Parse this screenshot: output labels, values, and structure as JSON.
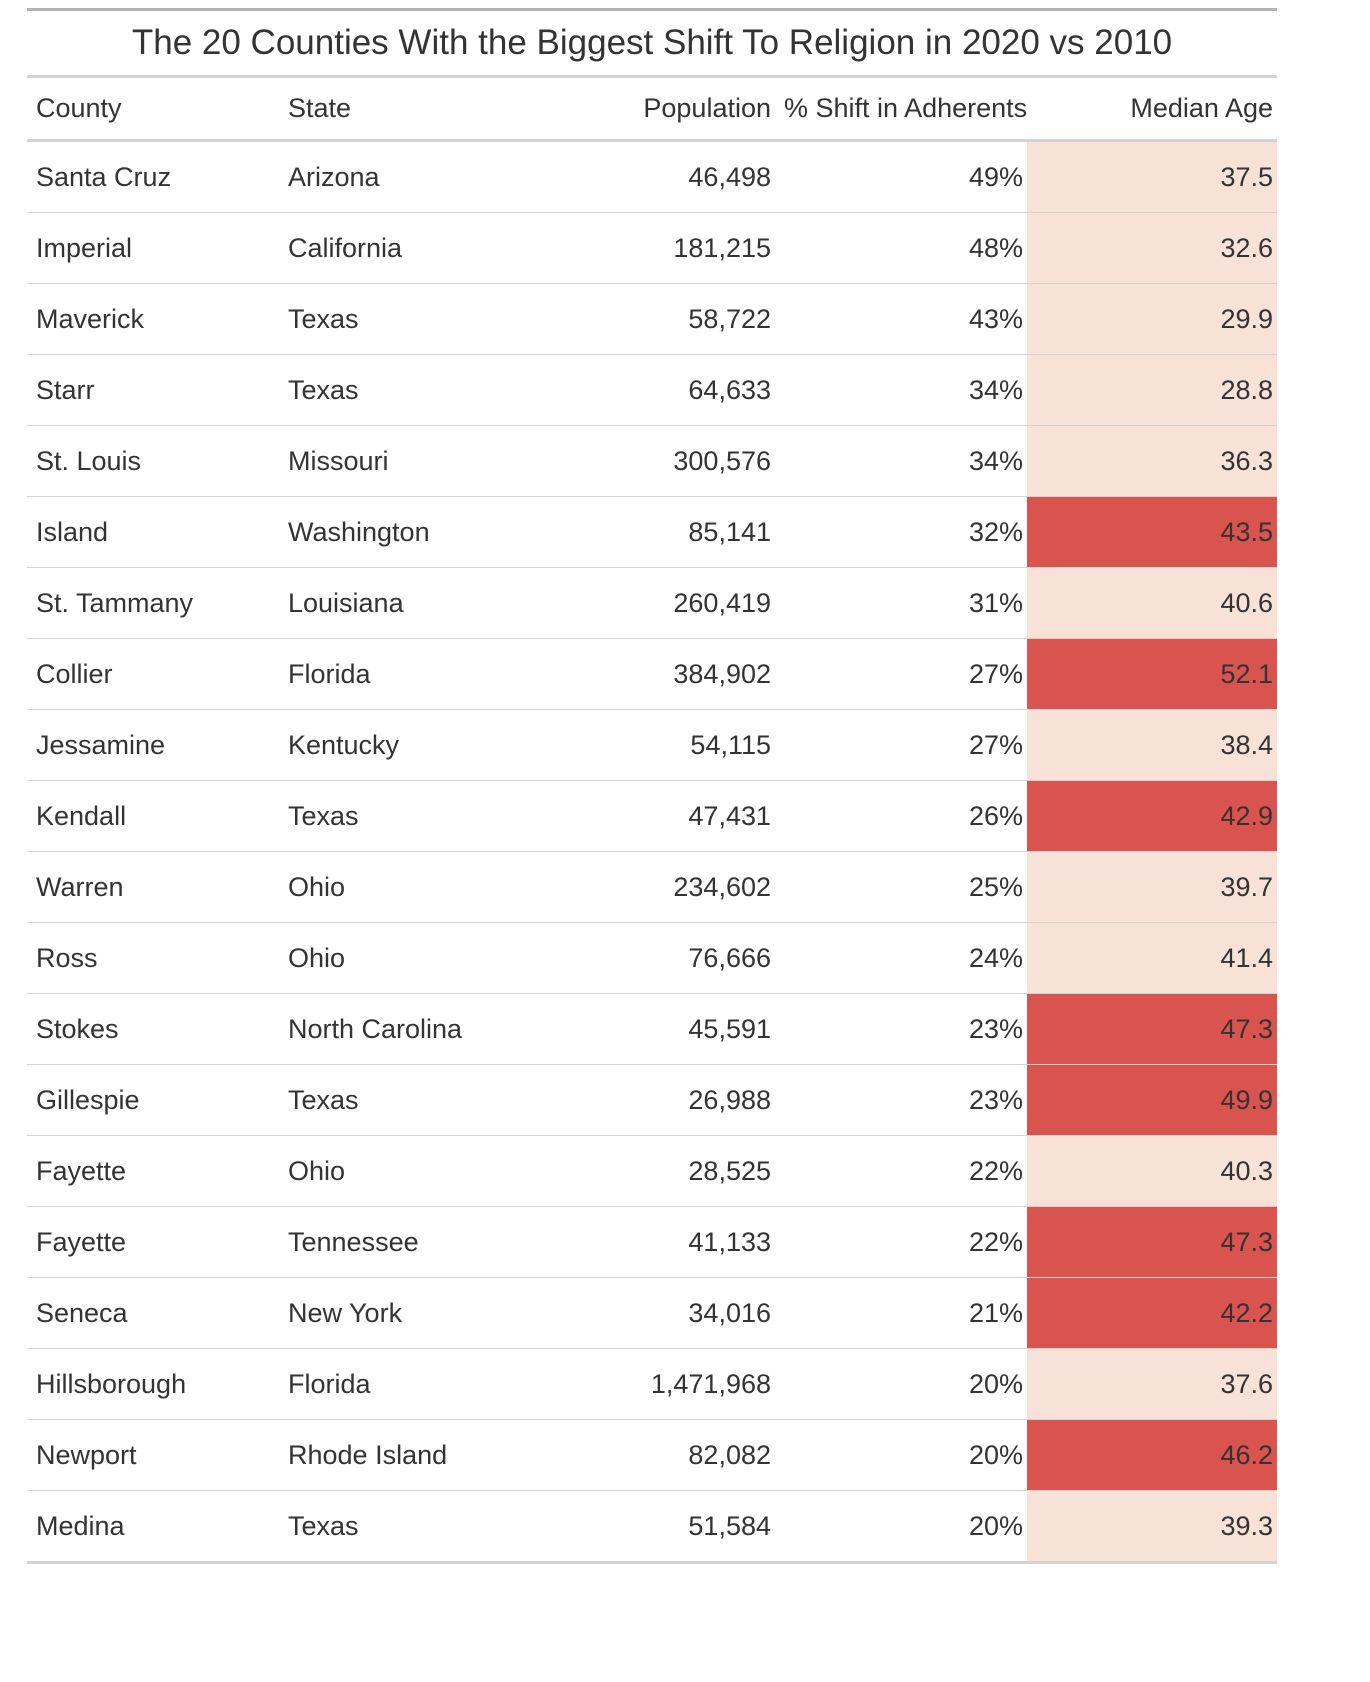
{
  "chart_data": {
    "type": "table",
    "title": "The 20 Counties With the Biggest Shift To Religion in 2020 vs 2010",
    "columns": [
      "County",
      "State",
      "Population",
      "% Shift in Adherents",
      "Median Age"
    ],
    "rows": [
      [
        "Santa Cruz",
        "Arizona",
        "46,498",
        "49%",
        "37.5"
      ],
      [
        "Imperial",
        "California",
        "181,215",
        "48%",
        "32.6"
      ],
      [
        "Maverick",
        "Texas",
        "58,722",
        "43%",
        "29.9"
      ],
      [
        "Starr",
        "Texas",
        "64,633",
        "34%",
        "28.8"
      ],
      [
        "St. Louis",
        "Missouri",
        "300,576",
        "34%",
        "36.3"
      ],
      [
        "Island",
        "Washington",
        "85,141",
        "32%",
        "43.5"
      ],
      [
        "St. Tammany",
        "Louisiana",
        "260,419",
        "31%",
        "40.6"
      ],
      [
        "Collier",
        "Florida",
        "384,902",
        "27%",
        "52.1"
      ],
      [
        "Jessamine",
        "Kentucky",
        "54,115",
        "27%",
        "38.4"
      ],
      [
        "Kendall",
        "Texas",
        "47,431",
        "26%",
        "42.9"
      ],
      [
        "Warren",
        "Ohio",
        "234,602",
        "25%",
        "39.7"
      ],
      [
        "Ross",
        "Ohio",
        "76,666",
        "24%",
        "41.4"
      ],
      [
        "Stokes",
        "North Carolina",
        "45,591",
        "23%",
        "47.3"
      ],
      [
        "Gillespie",
        "Texas",
        "26,988",
        "23%",
        "49.9"
      ],
      [
        "Fayette",
        "Ohio",
        "28,525",
        "22%",
        "40.3"
      ],
      [
        "Fayette",
        "Tennessee",
        "41,133",
        "22%",
        "47.3"
      ],
      [
        "Seneca",
        "New York",
        "34,016",
        "21%",
        "42.2"
      ],
      [
        "Hillsborough",
        "Florida",
        "1,471,968",
        "20%",
        "37.6"
      ],
      [
        "Newport",
        "Rhode Island",
        "82,082",
        "20%",
        "46.2"
      ],
      [
        "Medina",
        "Texas",
        "51,584",
        "20%",
        "39.3"
      ]
    ],
    "median_age_highlight": [
      false,
      false,
      false,
      false,
      false,
      true,
      false,
      true,
      false,
      true,
      false,
      false,
      true,
      true,
      false,
      true,
      true,
      false,
      true,
      false
    ],
    "colors": {
      "highlight": "#d9534f",
      "default": "#f8e1d6"
    }
  }
}
